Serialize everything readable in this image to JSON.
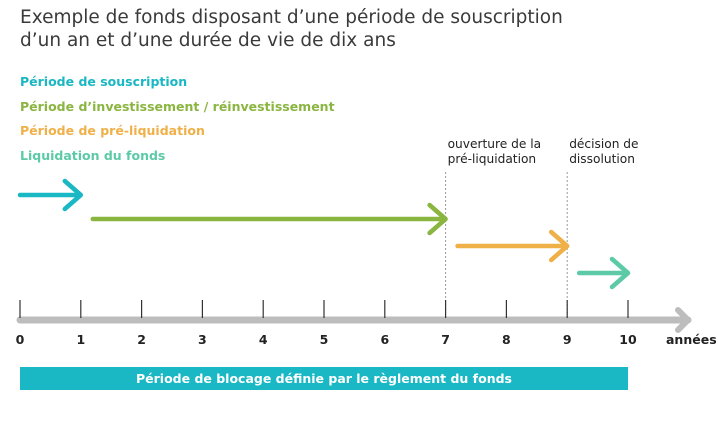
{
  "title": {
    "line1": "Exemple de fonds disposant d’une période de souscription",
    "line2": "d’un an et d’une durée de vie de dix ans"
  },
  "legend": [
    {
      "label": "Période de souscription",
      "color": "#1ab7c4"
    },
    {
      "label": "Période d’investissement / réinvestissement",
      "color": "#8ab540"
    },
    {
      "label": "Période de pré-liquidation",
      "color": "#f0b048"
    },
    {
      "label": "Liquidation du fonds",
      "color": "#5ccaa6"
    }
  ],
  "chart_data": {
    "type": "timeline",
    "axis": {
      "ticks": [
        "0",
        "1",
        "2",
        "3",
        "4",
        "5",
        "6",
        "7",
        "8",
        "9",
        "10"
      ],
      "unit_label": "années",
      "range": [
        0,
        10
      ],
      "color": "#bdbdbd"
    },
    "periods": [
      {
        "name": "Période de souscription",
        "start": 0,
        "end": 1,
        "color": "#1ab7c4"
      },
      {
        "name": "Période d’investissement / réinvestissement",
        "start": 1,
        "end": 7,
        "color": "#8ab540"
      },
      {
        "name": "Période de pré-liquidation",
        "start": 7,
        "end": 9,
        "color": "#f0b048"
      },
      {
        "name": "Liquidation du fonds",
        "start": 9,
        "end": 10,
        "color": "#5ccaa6"
      }
    ],
    "markers": [
      {
        "at": 7,
        "line1": "ouverture de la",
        "line2": "pré-liquidation"
      },
      {
        "at": 9,
        "line1": "décision de",
        "line2": "dissolution"
      }
    ]
  },
  "blocking_period": {
    "label": "Période de blocage définie par le règlement du fonds",
    "start": 0,
    "end": 10,
    "color": "#1ab7c4"
  }
}
